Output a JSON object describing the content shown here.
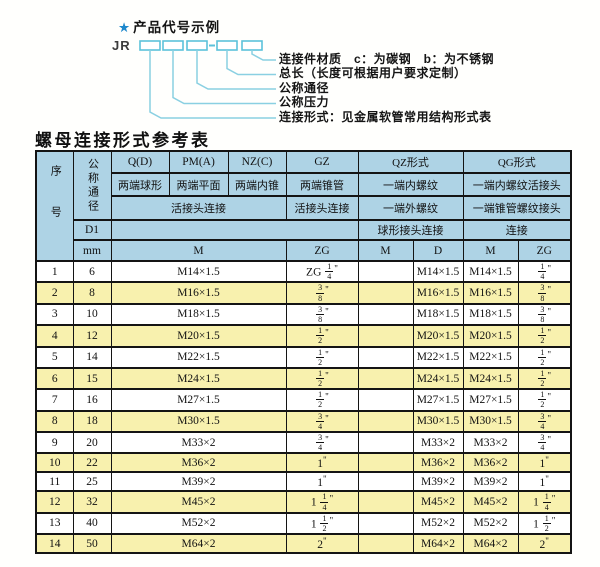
{
  "diagram": {
    "star": "★",
    "title": "产品代号示例",
    "code_prefix": "JR",
    "labels": [
      "连接件材质　c：为碳钢　b：为不锈钢",
      "总长（长度可根据用户要求定制）",
      "公称通径",
      "公称压力",
      "连接形式：见金属软管常用结构形式表"
    ]
  },
  "table": {
    "title": "螺母连接形式参考表",
    "header": {
      "seq": "序号",
      "nominal_diameter": "公称通径",
      "d1": "D1",
      "unit_mm": "mm",
      "group_qd": "Q(D)",
      "group_pma": "PM(A)",
      "group_nzc": "NZ(C)",
      "group_gz": "GZ",
      "group_qz": "QZ形式",
      "group_qg": "QG形式",
      "desc_qd": "两端球形",
      "desc_pma": "两端平面",
      "desc_nzc": "两端内锥",
      "desc_gz": "两端锥管",
      "desc_qz": "一端内螺纹",
      "desc_qg": "一端内螺纹活接头",
      "conn_left": "活接头连接",
      "conn_gz": "活接头连接",
      "desc2_qz": "一端外螺纹",
      "desc2_qg": "一端锥管螺纹接头",
      "conn_qz": "球形接头连接",
      "conn_qg": "连接",
      "sub_m": "M",
      "sub_zg": "ZG",
      "sub_qz_m": "M",
      "sub_qz_d": "D",
      "sub_qg_m": "M",
      "sub_qg_zg": "ZG"
    },
    "rows": [
      {
        "seq": "1",
        "mm": "6",
        "m": "M14×1.5",
        "gz": "ZG 1/4\"",
        "qz_m": "",
        "qz_d": "M14×1.5",
        "qg_m": "M14×1.5",
        "qg_zg": "1/4\""
      },
      {
        "seq": "2",
        "mm": "8",
        "m": "M16×1.5",
        "gz": "3/8\"",
        "qz_m": "",
        "qz_d": "M16×1.5",
        "qg_m": "M16×1.5",
        "qg_zg": "3/8\""
      },
      {
        "seq": "3",
        "mm": "10",
        "m": "M18×1.5",
        "gz": "3/8\"",
        "qz_m": "",
        "qz_d": "M18×1.5",
        "qg_m": "M18×1.5",
        "qg_zg": "3/8\""
      },
      {
        "seq": "4",
        "mm": "12",
        "m": "M20×1.5",
        "gz": "1/2\"",
        "qz_m": "",
        "qz_d": "M20×1.5",
        "qg_m": "M20×1.5",
        "qg_zg": "1/2\""
      },
      {
        "seq": "5",
        "mm": "14",
        "m": "M22×1.5",
        "gz": "1/2\"",
        "qz_m": "",
        "qz_d": "M22×1.5",
        "qg_m": "M22×1.5",
        "qg_zg": "1/2\""
      },
      {
        "seq": "6",
        "mm": "15",
        "m": "M24×1.5",
        "gz": "1/2\"",
        "qz_m": "",
        "qz_d": "M24×1.5",
        "qg_m": "M24×1.5",
        "qg_zg": "1/2\""
      },
      {
        "seq": "7",
        "mm": "16",
        "m": "M27×1.5",
        "gz": "1/2\"",
        "qz_m": "",
        "qz_d": "M27×1.5",
        "qg_m": "M27×1.5",
        "qg_zg": "1/2\""
      },
      {
        "seq": "8",
        "mm": "18",
        "m": "M30×1.5",
        "gz": "3/4\"",
        "qz_m": "",
        "qz_d": "M30×1.5",
        "qg_m": "M30×1.5",
        "qg_zg": "3/4\""
      },
      {
        "seq": "9",
        "mm": "20",
        "m": "M33×2",
        "gz": "3/4\"",
        "qz_m": "",
        "qz_d": "M33×2",
        "qg_m": "M33×2",
        "qg_zg": "3/4\""
      },
      {
        "seq": "10",
        "mm": "22",
        "m": "M36×2",
        "gz": "1\"",
        "qz_m": "",
        "qz_d": "M36×2",
        "qg_m": "M36×2",
        "qg_zg": "1\""
      },
      {
        "seq": "11",
        "mm": "25",
        "m": "M39×2",
        "gz": "1\"",
        "qz_m": "",
        "qz_d": "M39×2",
        "qg_m": "M39×2",
        "qg_zg": "1\""
      },
      {
        "seq": "12",
        "mm": "32",
        "m": "M45×2",
        "gz": "1 1/4\"",
        "qz_m": "",
        "qz_d": "M45×2",
        "qg_m": "M45×2",
        "qg_zg": "1 1/4\""
      },
      {
        "seq": "13",
        "mm": "40",
        "m": "M52×2",
        "gz": "1 1/2\"",
        "qz_m": "",
        "qz_d": "M52×2",
        "qg_m": "M52×2",
        "qg_zg": "1 1/2\""
      },
      {
        "seq": "14",
        "mm": "50",
        "m": "M64×2",
        "gz": "2\"",
        "qz_m": "",
        "qz_d": "M64×2",
        "qg_m": "M64×2",
        "qg_zg": "2\""
      }
    ]
  },
  "colors": {
    "header_blue": "#aed3e5",
    "row_yellow": "#f8f1ae",
    "diagram_cyan": "#7fcce0",
    "star_blue": "#1e88cc",
    "border_black": "#141414"
  }
}
